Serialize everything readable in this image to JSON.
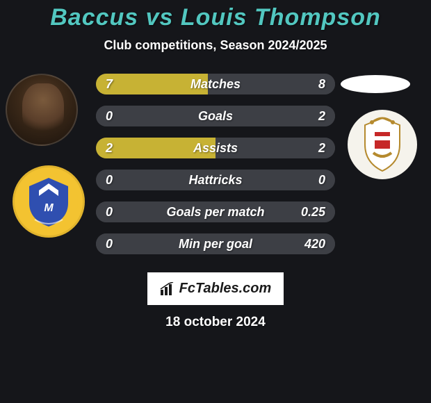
{
  "background_color": "#15161a",
  "title": {
    "text": "Baccus vs Louis Thompson",
    "color": "#52c7c0",
    "fontsize": 34
  },
  "subtitle": {
    "text": "Club competitions, Season 2024/2025",
    "color": "#ffffff",
    "fontsize": 18
  },
  "row_style": {
    "height": 30,
    "gap": 16,
    "track_color": "#3d3f45",
    "left_bar_color": "#c7b234",
    "right_bar_color": "#3d3f45",
    "label_color": "#ffffff",
    "value_color": "#ffffff",
    "label_fontsize": 18,
    "value_fontsize": 18
  },
  "rows": [
    {
      "label": "Matches",
      "left": "7",
      "right": "8",
      "left_pct": 46.7,
      "right_pct": 53.3
    },
    {
      "label": "Goals",
      "left": "0",
      "right": "2",
      "left_pct": 0,
      "right_pct": 100
    },
    {
      "label": "Assists",
      "left": "2",
      "right": "2",
      "left_pct": 50,
      "right_pct": 50
    },
    {
      "label": "Hattricks",
      "left": "0",
      "right": "0",
      "left_pct": 0,
      "right_pct": 0
    },
    {
      "label": "Goals per match",
      "left": "0",
      "right": "0.25",
      "left_pct": 0,
      "right_pct": 100
    },
    {
      "label": "Min per goal",
      "left": "0",
      "right": "420",
      "left_pct": 0,
      "right_pct": 100
    }
  ],
  "brand": {
    "text": "FcTables.com",
    "box_bg": "#ffffff",
    "text_color": "#1a1a1a",
    "fontsize": 20
  },
  "date": {
    "text": "18 october 2024",
    "color": "#ffffff",
    "fontsize": 19
  },
  "left_club_colors": {
    "bg": "#f3c331",
    "shield": "#2f4fb0",
    "accent": "#ffffff"
  },
  "right_crest_colors": {
    "bg": "#f5f3ec",
    "red": "#c62828",
    "gold": "#b58a2e",
    "white": "#ffffff"
  }
}
